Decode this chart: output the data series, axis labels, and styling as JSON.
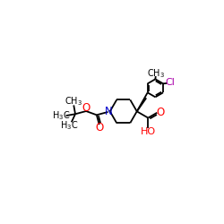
{
  "bg_color": "#FFFFFF",
  "bond_color": "#000000",
  "n_color": "#0000CD",
  "o_color": "#FF0000",
  "cl_color": "#AA00AA",
  "lw": 1.3,
  "figsize": [
    2.5,
    2.5
  ],
  "dpi": 100,
  "xlim": [
    0,
    10
  ],
  "ylim": [
    0,
    10
  ]
}
